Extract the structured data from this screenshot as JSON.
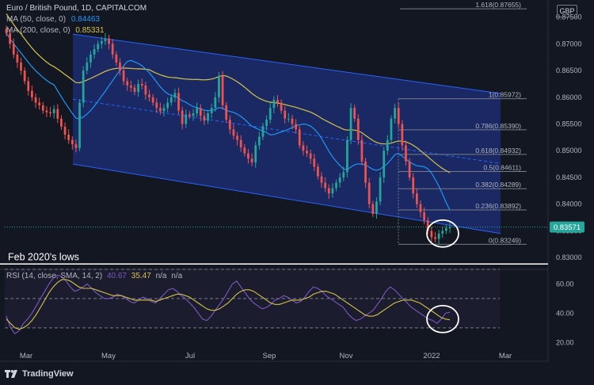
{
  "header": {
    "symbol": "Euro / British Pound, 1D, CAPITALCOM",
    "ma50_label": "MA (50, close, 0)",
    "ma50_value": "0.84463",
    "ma200_label": "MA (200, close, 0)",
    "ma200_value": "0.85331",
    "currency": "GBP"
  },
  "rsi_header": {
    "label": "RSI (14, close, SMA, 14, 2)",
    "rsi_value": "40.67",
    "ma_value": "35.47",
    "na1": "n/a",
    "na2": "n/a"
  },
  "branding": "TradingView",
  "colors": {
    "background": "#131722",
    "up_candle": "#26a69a",
    "down_candle": "#ef5350",
    "channel_fill": "#1c2d6e",
    "channel_line": "#2962ff",
    "ma50": "#2196f3",
    "ma200": "#d4c24a",
    "rsi_line": "#7e57c2",
    "rsi_ma": "#d4c24a",
    "price_label_bg": "#26a69a"
  },
  "chart_data": [
    {
      "type": "candlestick",
      "title": "Euro / British Pound, 1D, CAPITALCOM",
      "x_tick_labels": [
        "Mar",
        "May",
        "Jul",
        "Sep",
        "Nov",
        "2022",
        "Mar"
      ],
      "y_tick_labels": [
        "0.87500",
        "0.87000",
        "0.86500",
        "0.86000",
        "0.85500",
        "0.85000",
        "0.84500",
        "0.84000",
        "0.83500",
        "0.83000"
      ],
      "ylim": [
        0.8278,
        0.8782
      ],
      "last_price": "0.83571",
      "closes": [
        0.872,
        0.87,
        0.868,
        0.8665,
        0.865,
        0.863,
        0.8612,
        0.86,
        0.859,
        0.8585,
        0.8575,
        0.8572,
        0.857,
        0.8578,
        0.856,
        0.8545,
        0.853,
        0.852,
        0.8512,
        0.8505,
        0.859,
        0.865,
        0.8665,
        0.868,
        0.869,
        0.87,
        0.8705,
        0.871,
        0.87,
        0.868,
        0.8665,
        0.865,
        0.863,
        0.8622,
        0.8618,
        0.861,
        0.8625,
        0.8622,
        0.8605,
        0.86,
        0.859,
        0.858,
        0.8574,
        0.858,
        0.859,
        0.86,
        0.8608,
        0.8575,
        0.855,
        0.8568,
        0.8565,
        0.857,
        0.858,
        0.8565,
        0.8556,
        0.857,
        0.858,
        0.86,
        0.864,
        0.8585,
        0.8558,
        0.854,
        0.8528,
        0.852,
        0.8506,
        0.8495,
        0.8485,
        0.8478,
        0.851,
        0.8526,
        0.8546,
        0.8558,
        0.858,
        0.8595,
        0.859,
        0.8575,
        0.856,
        0.856,
        0.855,
        0.854,
        0.851,
        0.85,
        0.8495,
        0.8485,
        0.847,
        0.8452,
        0.844,
        0.843,
        0.842,
        0.843,
        0.844,
        0.845,
        0.846,
        0.852,
        0.858,
        0.856,
        0.852,
        0.848,
        0.844,
        0.84,
        0.8382,
        0.8405,
        0.845,
        0.85,
        0.852,
        0.856,
        0.858,
        0.855,
        0.851,
        0.848,
        0.845,
        0.842,
        0.84,
        0.8385,
        0.837,
        0.835,
        0.8338,
        0.8335,
        0.8345,
        0.835,
        0.8355,
        0.8357
      ],
      "channel": {
        "upper": [
          [
            0.8718,
            0.8607
          ]
        ],
        "lower": [
          [
            0.8475,
            0.8345
          ]
        ]
      },
      "fib_levels": [
        {
          "ratio": "1.618",
          "value": 0.87655,
          "label": "1.618(0.87655)"
        },
        {
          "ratio": "1",
          "value": 0.85972,
          "label": "1(0.85972)"
        },
        {
          "ratio": "0.786",
          "value": 0.8539,
          "label": "0.786(0.85390)"
        },
        {
          "ratio": "0.618",
          "value": 0.84932,
          "label": "0.618(0.84932)"
        },
        {
          "ratio": "0.5",
          "value": 0.84611,
          "label": "0.5(0.84611)"
        },
        {
          "ratio": "0.382",
          "value": 0.84289,
          "label": "0.382(0.84289)"
        },
        {
          "ratio": "0.236",
          "value": 0.83892,
          "label": "0.236(0.83892)"
        },
        {
          "ratio": "0",
          "value": 0.83249,
          "label": "0(0.83249)"
        }
      ],
      "annotation": "Feb 2020's lows",
      "annotation_level": 0.8288,
      "series": [
        {
          "name": "MA (50, close, 0)",
          "last_value": 0.84463
        },
        {
          "name": "MA (200, close, 0)",
          "last_value": 0.85331
        }
      ]
    },
    {
      "type": "line",
      "title": "RSI (14, close, SMA, 14, 2)",
      "y_tick_labels": [
        "60.00",
        "40.00",
        "20.00"
      ],
      "ylim": [
        18,
        70
      ],
      "bands": [
        70,
        50,
        30
      ],
      "rsi": [
        38,
        30,
        26,
        28,
        33,
        36,
        40,
        45,
        50,
        55,
        60,
        64,
        66,
        65,
        62,
        58,
        55,
        56,
        58,
        60,
        57,
        54,
        52,
        50,
        50,
        51,
        53,
        52,
        50,
        48,
        47,
        49,
        51,
        50,
        48,
        47,
        50,
        53,
        56,
        57,
        55,
        52,
        50,
        47,
        44,
        40,
        36,
        35,
        38,
        42,
        46,
        50,
        55,
        60,
        62,
        58,
        54,
        50,
        47,
        45,
        43,
        44,
        46,
        49,
        50,
        52,
        51,
        49,
        47,
        48,
        51,
        55,
        58,
        57,
        55,
        52,
        50,
        48,
        46,
        44,
        40,
        37,
        35,
        36,
        38,
        40,
        42,
        46,
        50,
        55,
        58,
        56,
        53,
        50,
        47,
        44,
        42,
        40,
        38,
        36,
        35,
        33,
        36,
        40,
        40.67
      ],
      "rsi_ma": [
        36,
        33,
        30,
        29,
        30,
        32,
        35,
        39,
        44,
        49,
        54,
        58,
        61,
        63,
        63,
        62,
        60,
        58,
        57,
        57,
        57,
        56,
        55,
        54,
        53,
        52,
        52,
        52,
        51,
        50,
        49,
        49,
        49,
        49,
        49,
        48,
        49,
        50,
        51,
        52,
        53,
        53,
        52,
        51,
        49,
        47,
        45,
        43,
        42,
        42,
        43,
        45,
        47,
        50,
        53,
        55,
        56,
        56,
        55,
        53,
        51,
        49,
        47,
        46,
        46,
        47,
        48,
        49,
        49,
        49,
        50,
        51,
        53,
        54,
        55,
        55,
        54,
        53,
        51,
        49,
        47,
        45,
        43,
        41,
        39,
        38,
        38,
        39,
        41,
        43,
        45,
        47,
        48,
        49,
        49,
        49,
        48,
        47,
        45,
        43,
        41,
        39,
        37,
        36,
        35.47
      ],
      "series": [
        {
          "name": "RSI",
          "last_value": 40.67
        },
        {
          "name": "SMA 14",
          "last_value": 35.47
        }
      ]
    }
  ]
}
